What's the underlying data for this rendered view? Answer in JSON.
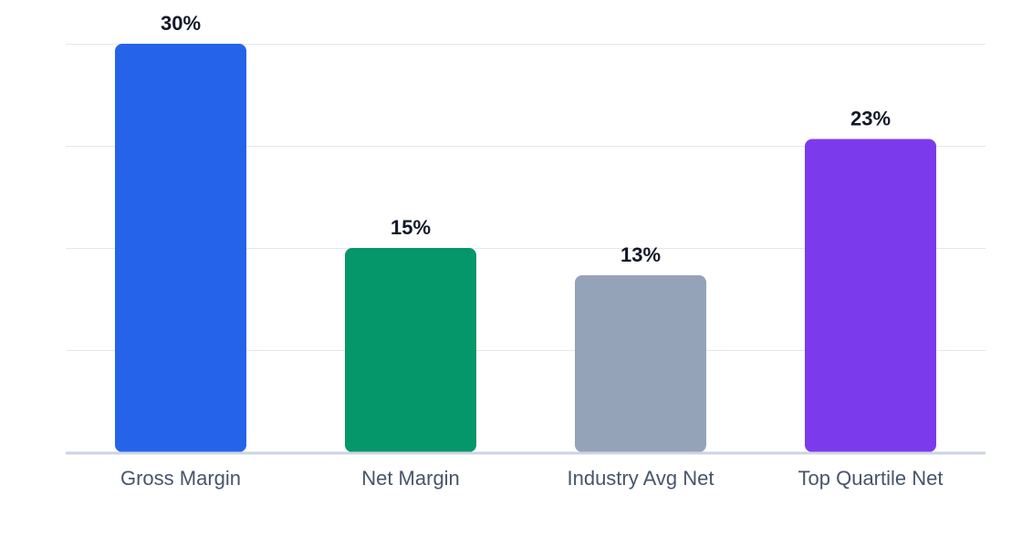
{
  "chart_data": {
    "type": "bar",
    "categories": [
      "Gross Margin",
      "Net Margin",
      "Industry Avg Net",
      "Top Quartile Net"
    ],
    "values": [
      30,
      15,
      13,
      23
    ],
    "value_labels": [
      "30%",
      "15%",
      "13%",
      "23%"
    ],
    "colors": [
      "#2563EB",
      "#059669",
      "#94A3B8",
      "#7C3AED"
    ],
    "ylim": [
      0,
      30
    ],
    "yticks": [
      0,
      7.5,
      15,
      22.5,
      30
    ],
    "grid": true,
    "legend": "none",
    "title": "",
    "xlabel": "",
    "ylabel": ""
  },
  "style": {
    "grid_color": "#E5E7EB",
    "baseline_color": "#CBD5E1",
    "value_label_color": "#111827",
    "category_label_color": "#475569"
  }
}
